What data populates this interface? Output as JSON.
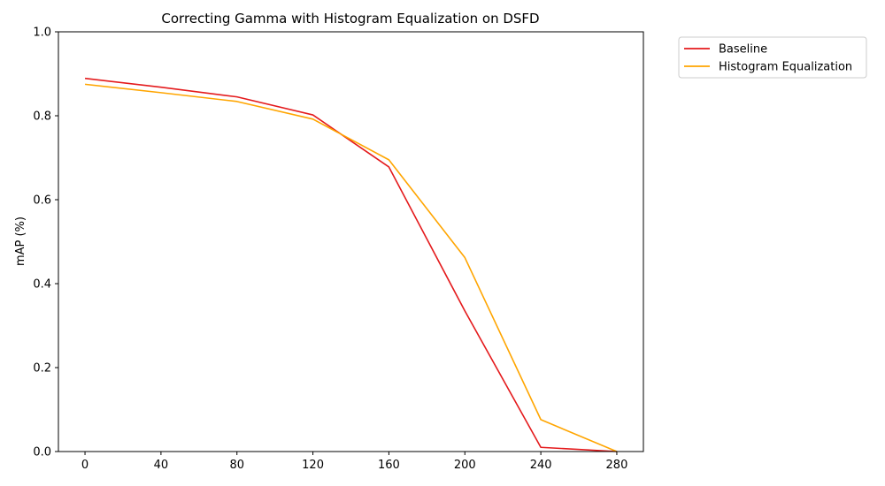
{
  "chart_data": {
    "type": "line",
    "title": "Correcting Gamma with Histogram Equalization on DSFD",
    "xlabel": "",
    "ylabel": "mAP (%)",
    "x": [
      0,
      40,
      80,
      120,
      160,
      200,
      240,
      280
    ],
    "x_ticks": [
      "0",
      "40",
      "80",
      "120",
      "160",
      "200",
      "240",
      "280"
    ],
    "y_ticks": [
      "0.0",
      "0.2",
      "0.4",
      "0.6",
      "0.8",
      "1.0"
    ],
    "xlim": [
      -14,
      294
    ],
    "ylim": [
      0,
      1
    ],
    "grid": false,
    "legend_position": "outside-top-right",
    "series": [
      {
        "name": "Baseline",
        "color": "#e41a1c",
        "values": [
          0.889,
          0.868,
          0.845,
          0.802,
          0.678,
          0.335,
          0.01,
          0.0
        ]
      },
      {
        "name": "Histogram Equalization",
        "color": "#ffa500",
        "values": [
          0.875,
          0.855,
          0.834,
          0.792,
          0.695,
          0.462,
          0.076,
          0.0
        ]
      }
    ]
  }
}
